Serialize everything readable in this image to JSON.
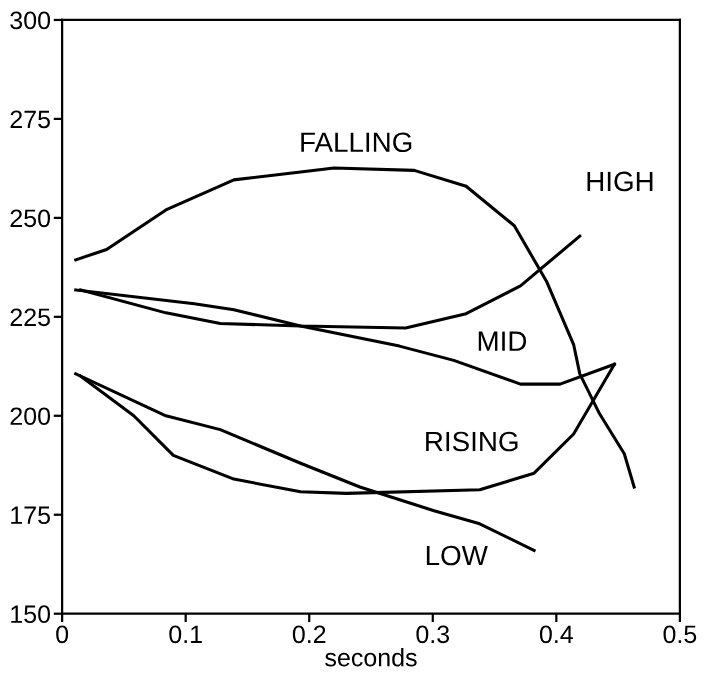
{
  "chart_data": {
    "type": "line",
    "xlabel": "seconds",
    "xlim": [
      0,
      0.5
    ],
    "xticks": [
      {
        "value": 0,
        "label": "0"
      },
      0.1,
      0.2,
      0.3,
      0.4,
      0.5
    ],
    "ylim": [
      150,
      300
    ],
    "yticks": [
      150,
      175,
      200,
      225,
      250,
      275,
      300
    ],
    "grid": false,
    "legend": false,
    "marker": "none",
    "line_style": "solid",
    "series": [
      {
        "name": "FALLING",
        "color": "#000000",
        "x": [
          0.011,
          0.036,
          0.084,
          0.139,
          0.193,
          0.22,
          0.285,
          0.327,
          0.366,
          0.392,
          0.414,
          0.419,
          0.435,
          0.455,
          0.463
        ],
        "values": [
          239.4,
          242,
          252,
          259.6,
          261.6,
          262.6,
          262,
          258,
          248,
          234,
          218,
          210.6,
          200.5,
          190.4,
          182
        ]
      },
      {
        "name": "HIGH",
        "color": "#000000",
        "x": [
          0.011,
          0.107,
          0.139,
          0.193,
          0.278,
          0.327,
          0.371,
          0.419
        ],
        "values": [
          231.8,
          228.3,
          226.8,
          222.7,
          222.2,
          225.8,
          232.8,
          245.4
        ]
      },
      {
        "name": "MID",
        "color": "#000000",
        "x": [
          0.015,
          0.084,
          0.128,
          0.193,
          0.273,
          0.317,
          0.371,
          0.403,
          0.447
        ],
        "values": [
          231.8,
          226,
          223.3,
          222.7,
          217.6,
          214,
          208,
          208,
          213
        ]
      },
      {
        "name": "RISING",
        "color": "#000000",
        "x": [
          0.015,
          0.058,
          0.09,
          0.139,
          0.193,
          0.23,
          0.338,
          0.382,
          0.414,
          0.447
        ],
        "values": [
          210,
          200,
          190,
          184,
          180.8,
          180.4,
          181.3,
          185.5,
          195.4,
          213
        ]
      },
      {
        "name": "LOW",
        "color": "#000000",
        "x": [
          0.011,
          0.084,
          0.128,
          0.193,
          0.241,
          0.301,
          0.338,
          0.382
        ],
        "values": [
          210.6,
          200,
          196.5,
          188,
          182,
          176,
          172.7,
          166
        ]
      }
    ]
  }
}
